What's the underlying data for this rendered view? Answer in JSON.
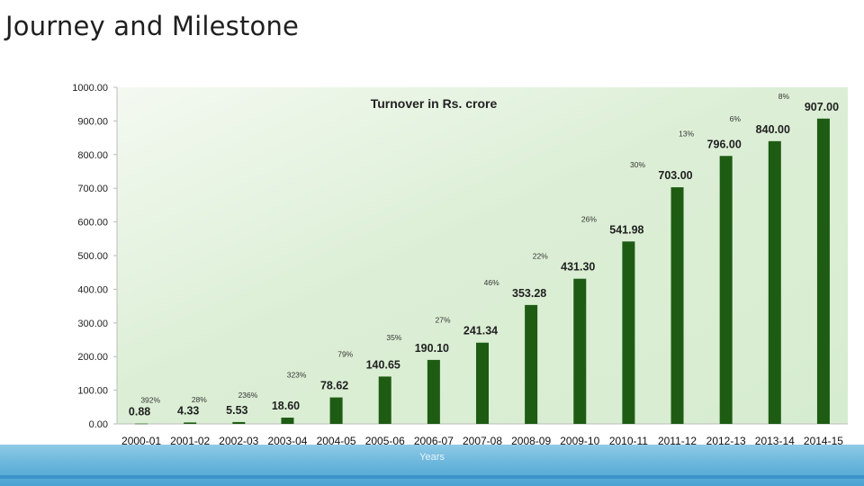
{
  "slide": {
    "title": "Journey and Milestone"
  },
  "chart_data": {
    "type": "bar",
    "title": "Turnover in Rs. crore",
    "xlabel": "Years",
    "ylabel": "",
    "ylim": [
      0,
      1000
    ],
    "yticks": [
      "0.00",
      "100.00",
      "200.00",
      "300.00",
      "400.00",
      "500.00",
      "600.00",
      "700.00",
      "800.00",
      "900.00",
      "1000.00"
    ],
    "categories": [
      "2000-01",
      "2001-02",
      "2002-03",
      "2003-04",
      "2004-05",
      "2005-06",
      "2006-07",
      "2007-08",
      "2008-09",
      "2009-10",
      "2010-11",
      "2011-12",
      "2012-13",
      "2013-14",
      "2014-15"
    ],
    "values": [
      0.88,
      4.33,
      5.53,
      18.6,
      78.62,
      140.65,
      190.1,
      241.34,
      353.28,
      431.3,
      541.98,
      703.0,
      796.0,
      840.0,
      907.0
    ],
    "value_labels": [
      "0.88",
      "4.33",
      "5.53",
      "18.60",
      "78.62",
      "140.65",
      "190.10",
      "241.34",
      "353.28",
      "431.30",
      "541.98",
      "703.00",
      "796.00",
      "840.00",
      "907.00"
    ],
    "growth_labels": [
      "",
      "392%",
      "28%",
      "236%",
      "323%",
      "79%",
      "35%",
      "27%",
      "46%",
      "22%",
      "26%",
      "30%",
      "13%",
      "6%",
      "8%"
    ],
    "bar_color": "#1e5c14",
    "grid": false,
    "legend": "none"
  }
}
